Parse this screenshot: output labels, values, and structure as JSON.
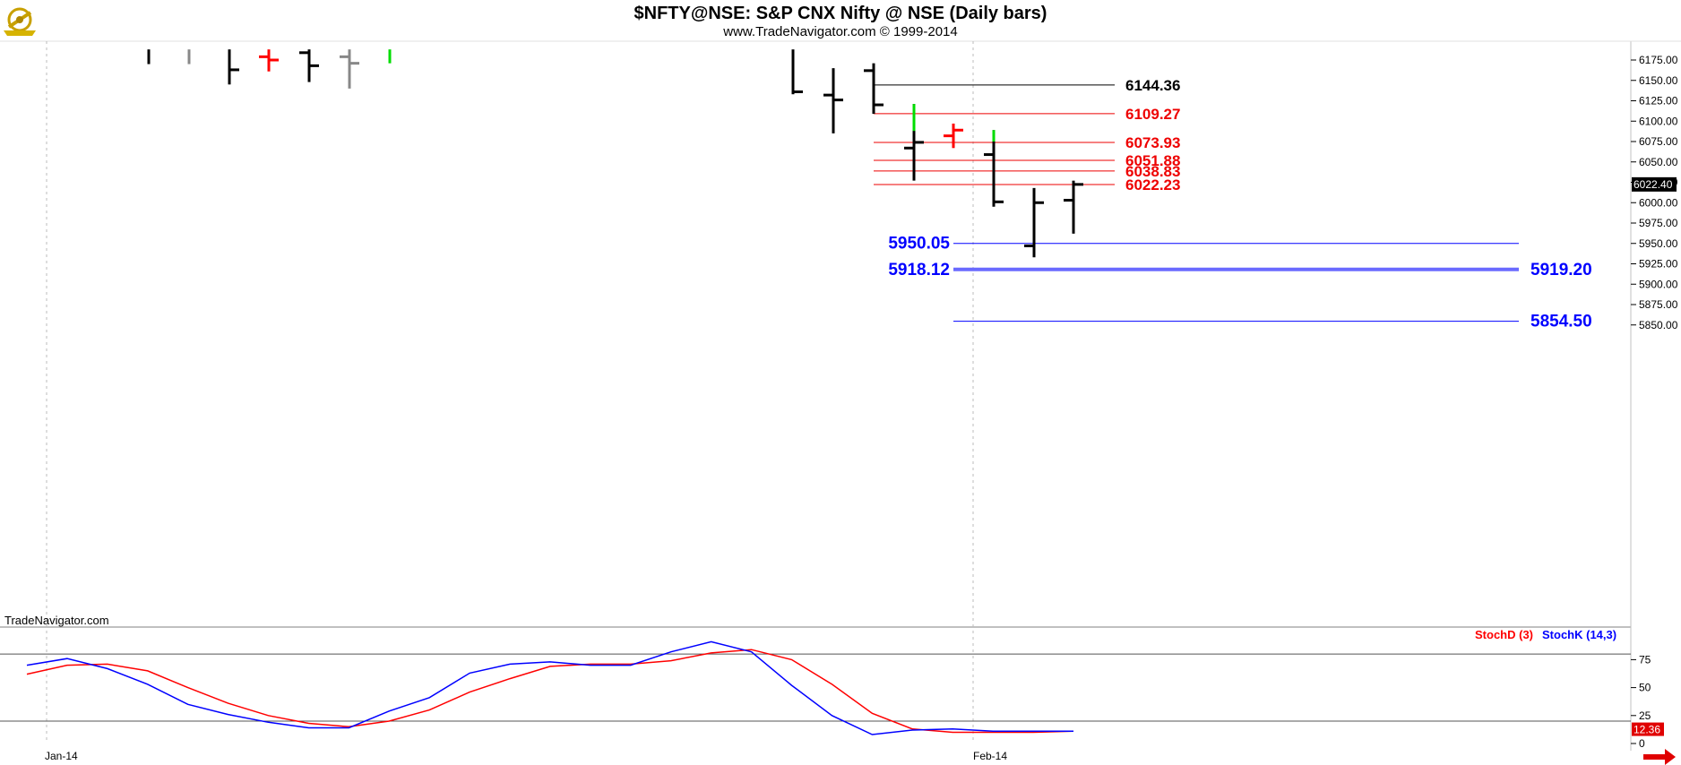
{
  "header": {
    "title": "$NFTY@NSE:  S&P CNX Nifty @ NSE  (Daily bars)",
    "subtitle": "www.TradeNavigator.com © 1999-2014",
    "logo_icon": "gold-sextant-icon"
  },
  "watermark": "TradeNavigator.com",
  "price_axis": {
    "ticks": [
      "6175.00",
      "6150.00",
      "6125.00",
      "6100.00",
      "6075.00",
      "6050.00",
      "6025.00",
      "6000.00",
      "5975.00",
      "5950.00",
      "5925.00",
      "5900.00",
      "5875.00",
      "5850.00"
    ],
    "last_price": "6022.40"
  },
  "osc_axis": {
    "ticks": [
      "75",
      "50",
      "25",
      "0"
    ],
    "last_value": "12.36"
  },
  "date_labels": [
    "Jan-14",
    "Feb-14"
  ],
  "indicators": {
    "stochd_label": "StochD (3)",
    "stochk_label": "StochK (14,3)"
  },
  "colors": {
    "black_bar": "#000000",
    "up_bar": "#00dd00",
    "gray_bar": "#888888",
    "red_bar": "#ff0000",
    "red_level": "#ee0000",
    "blue_level": "#0000ff",
    "stochd": "#ff0000",
    "stochk": "#0000ff"
  },
  "chart_data": [
    {
      "type": "ohlc",
      "title": "$NFTY@NSE:  S&P CNX Nifty @ NSE  (Daily bars)",
      "ylim": [
        5830,
        6188
      ],
      "x_labels": [
        "Jan-14",
        "Feb-14"
      ],
      "bars": [
        {
          "date": "2013-12-31",
          "open": null,
          "high": 6188,
          "low": 6170,
          "close": null,
          "color": "black"
        },
        {
          "date": "2014-01-01",
          "open": null,
          "high": 6188,
          "low": 6170,
          "close": null,
          "color": "gray"
        },
        {
          "date": "2014-01-02",
          "open": null,
          "high": 6188,
          "low": 6145,
          "close": 6163,
          "color": "black"
        },
        {
          "date": "2014-01-03",
          "open": 6179,
          "high": 6188,
          "low": 6161,
          "close": 6175,
          "color": "red"
        },
        {
          "date": "2014-01-06",
          "open": 6184,
          "high": 6188,
          "low": 6148,
          "close": 6168,
          "color": "black"
        },
        {
          "date": "2014-01-07",
          "open": 6179,
          "high": 6188,
          "low": 6140,
          "close": 6171,
          "color": "gray"
        },
        {
          "date": "2014-01-08",
          "open": null,
          "high": 6188,
          "low": 6171,
          "close": null,
          "color": "green"
        },
        {
          "date": "2014-01-24",
          "open": null,
          "high": 6188,
          "low": 6133,
          "close": 6136,
          "color": "black"
        },
        {
          "date": "2014-01-27",
          "open": 6132,
          "high": 6165,
          "low": 6085,
          "close": 6126,
          "color": "black"
        },
        {
          "date": "2014-01-28",
          "open": 6162,
          "high": 6171,
          "low": 6109,
          "close": 6120,
          "color": "black"
        },
        {
          "date": "2014-01-29",
          "open": 6067,
          "high": 6121,
          "low": 6027,
          "close": 6074,
          "color": "black"
        },
        {
          "date": "2014-01-30",
          "open": 6082,
          "high": 6097,
          "low": 6067,
          "close": 6089,
          "color": "red"
        },
        {
          "date": "2014-01-31",
          "open": 6059,
          "high": 6089,
          "low": 5995,
          "close": 6001,
          "color": "black"
        },
        {
          "date": "2014-02-03",
          "open": 5947,
          "high": 6018,
          "low": 5933,
          "close": 6000,
          "color": "black"
        },
        {
          "date": "2014-02-04",
          "open": 6003,
          "high": 6027,
          "low": 5962,
          "close": 6022.4,
          "color": "black"
        }
      ],
      "levels": [
        {
          "value": 6144.36,
          "label": "6144.36",
          "color": "black"
        },
        {
          "value": 6109.27,
          "label": "6109.27",
          "color": "red"
        },
        {
          "value": 6073.93,
          "label": "6073.93",
          "color": "red"
        },
        {
          "value": 6051.88,
          "label": "6051.88",
          "color": "red"
        },
        {
          "value": 6038.83,
          "label": "6038.83",
          "color": "red"
        },
        {
          "value": 6022.23,
          "label": "6022.23",
          "color": "red"
        },
        {
          "value": 5950.05,
          "label": "5950.05",
          "color": "blue"
        },
        {
          "value": 5918.12,
          "label": "5918.12",
          "label_right": "5919.20",
          "color": "blue"
        },
        {
          "value": 5854.5,
          "label": "5854.50",
          "color": "blue"
        }
      ]
    },
    {
      "type": "line",
      "ylim": [
        0,
        100
      ],
      "hlines": [
        20,
        80
      ],
      "series": [
        {
          "name": "StochD (3)",
          "color": "red",
          "values": [
            62,
            70,
            71,
            65,
            50,
            36,
            25,
            18,
            15,
            20,
            30,
            46,
            58,
            69,
            71,
            71,
            74,
            81,
            84,
            75,
            53,
            27,
            13,
            10,
            10,
            10,
            11
          ]
        },
        {
          "name": "StochK (14,3)",
          "color": "blue",
          "values": [
            70,
            76,
            67,
            53,
            35,
            26,
            19,
            14,
            14,
            29,
            41,
            63,
            71,
            73,
            70,
            70,
            82,
            91,
            82,
            52,
            25,
            8,
            12,
            13,
            11,
            11,
            11
          ]
        }
      ]
    }
  ]
}
